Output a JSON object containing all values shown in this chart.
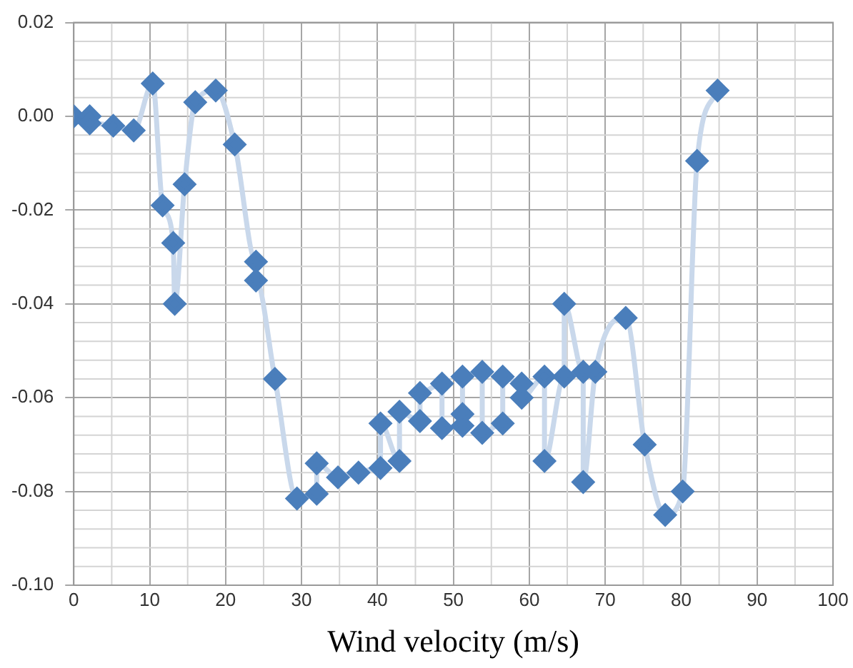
{
  "chart_data": {
    "type": "line",
    "xlabel": "Wind velocity (m/s)",
    "x": [
      0,
      2.1,
      2.1,
      5.2,
      7.9,
      10.4,
      11.7,
      13.1,
      13.3,
      14.6,
      16,
      18.7,
      21.2,
      24,
      24,
      26.5,
      29.4,
      32,
      32,
      34.8,
      37.5,
      40.4,
      40.4,
      42.9,
      42.9,
      45.6,
      45.6,
      48.5,
      48.5,
      51.2,
      51.2,
      51.2,
      53.8,
      53.8,
      56.5,
      56.5,
      59,
      59,
      62,
      62,
      64.6,
      64.6,
      67.1,
      67.1,
      68.7,
      72.7,
      75.2,
      77.9,
      80.2,
      82.1,
      84.8
    ],
    "series": [
      {
        "color": "#4a7ebb",
        "values": [
          0,
          0,
          -0.0015,
          -0.002,
          -0.003,
          0.007,
          -0.019,
          -0.027,
          -0.04,
          -0.0145,
          0.003,
          0.0055,
          -0.006,
          -0.031,
          -0.035,
          -0.056,
          -0.0815,
          -0.0805,
          -0.074,
          -0.077,
          -0.076,
          -0.075,
          -0.0655,
          -0.0735,
          -0.063,
          -0.065,
          -0.059,
          -0.057,
          -0.0665,
          -0.066,
          -0.0635,
          -0.0555,
          -0.0545,
          -0.0675,
          -0.0655,
          -0.0555,
          -0.057,
          -0.06,
          -0.0555,
          -0.0735,
          -0.0555,
          -0.04,
          -0.0545,
          -0.078,
          -0.0545,
          -0.043,
          -0.07,
          -0.085,
          -0.08,
          -0.0095,
          0.0055
        ]
      }
    ],
    "xlim": [
      0,
      100
    ],
    "xticks": [
      0,
      10,
      20,
      30,
      40,
      50,
      60,
      70,
      80,
      90,
      100
    ],
    "ylim": [
      -0.1,
      0.02
    ],
    "yticks": [
      {
        "value": -0.1,
        "label": "-0.10"
      },
      {
        "value": -0.08,
        "label": "-0.08"
      },
      {
        "value": -0.06,
        "label": "-0.06"
      },
      {
        "value": -0.04,
        "label": "-0.04"
      },
      {
        "value": -0.02,
        "label": "-0.02"
      },
      {
        "value": 0,
        "label": "0.00"
      },
      {
        "value": 0.02,
        "label": "0.02"
      }
    ],
    "grid": true,
    "marker": "diamond",
    "line_style": "solid",
    "legend": false
  }
}
